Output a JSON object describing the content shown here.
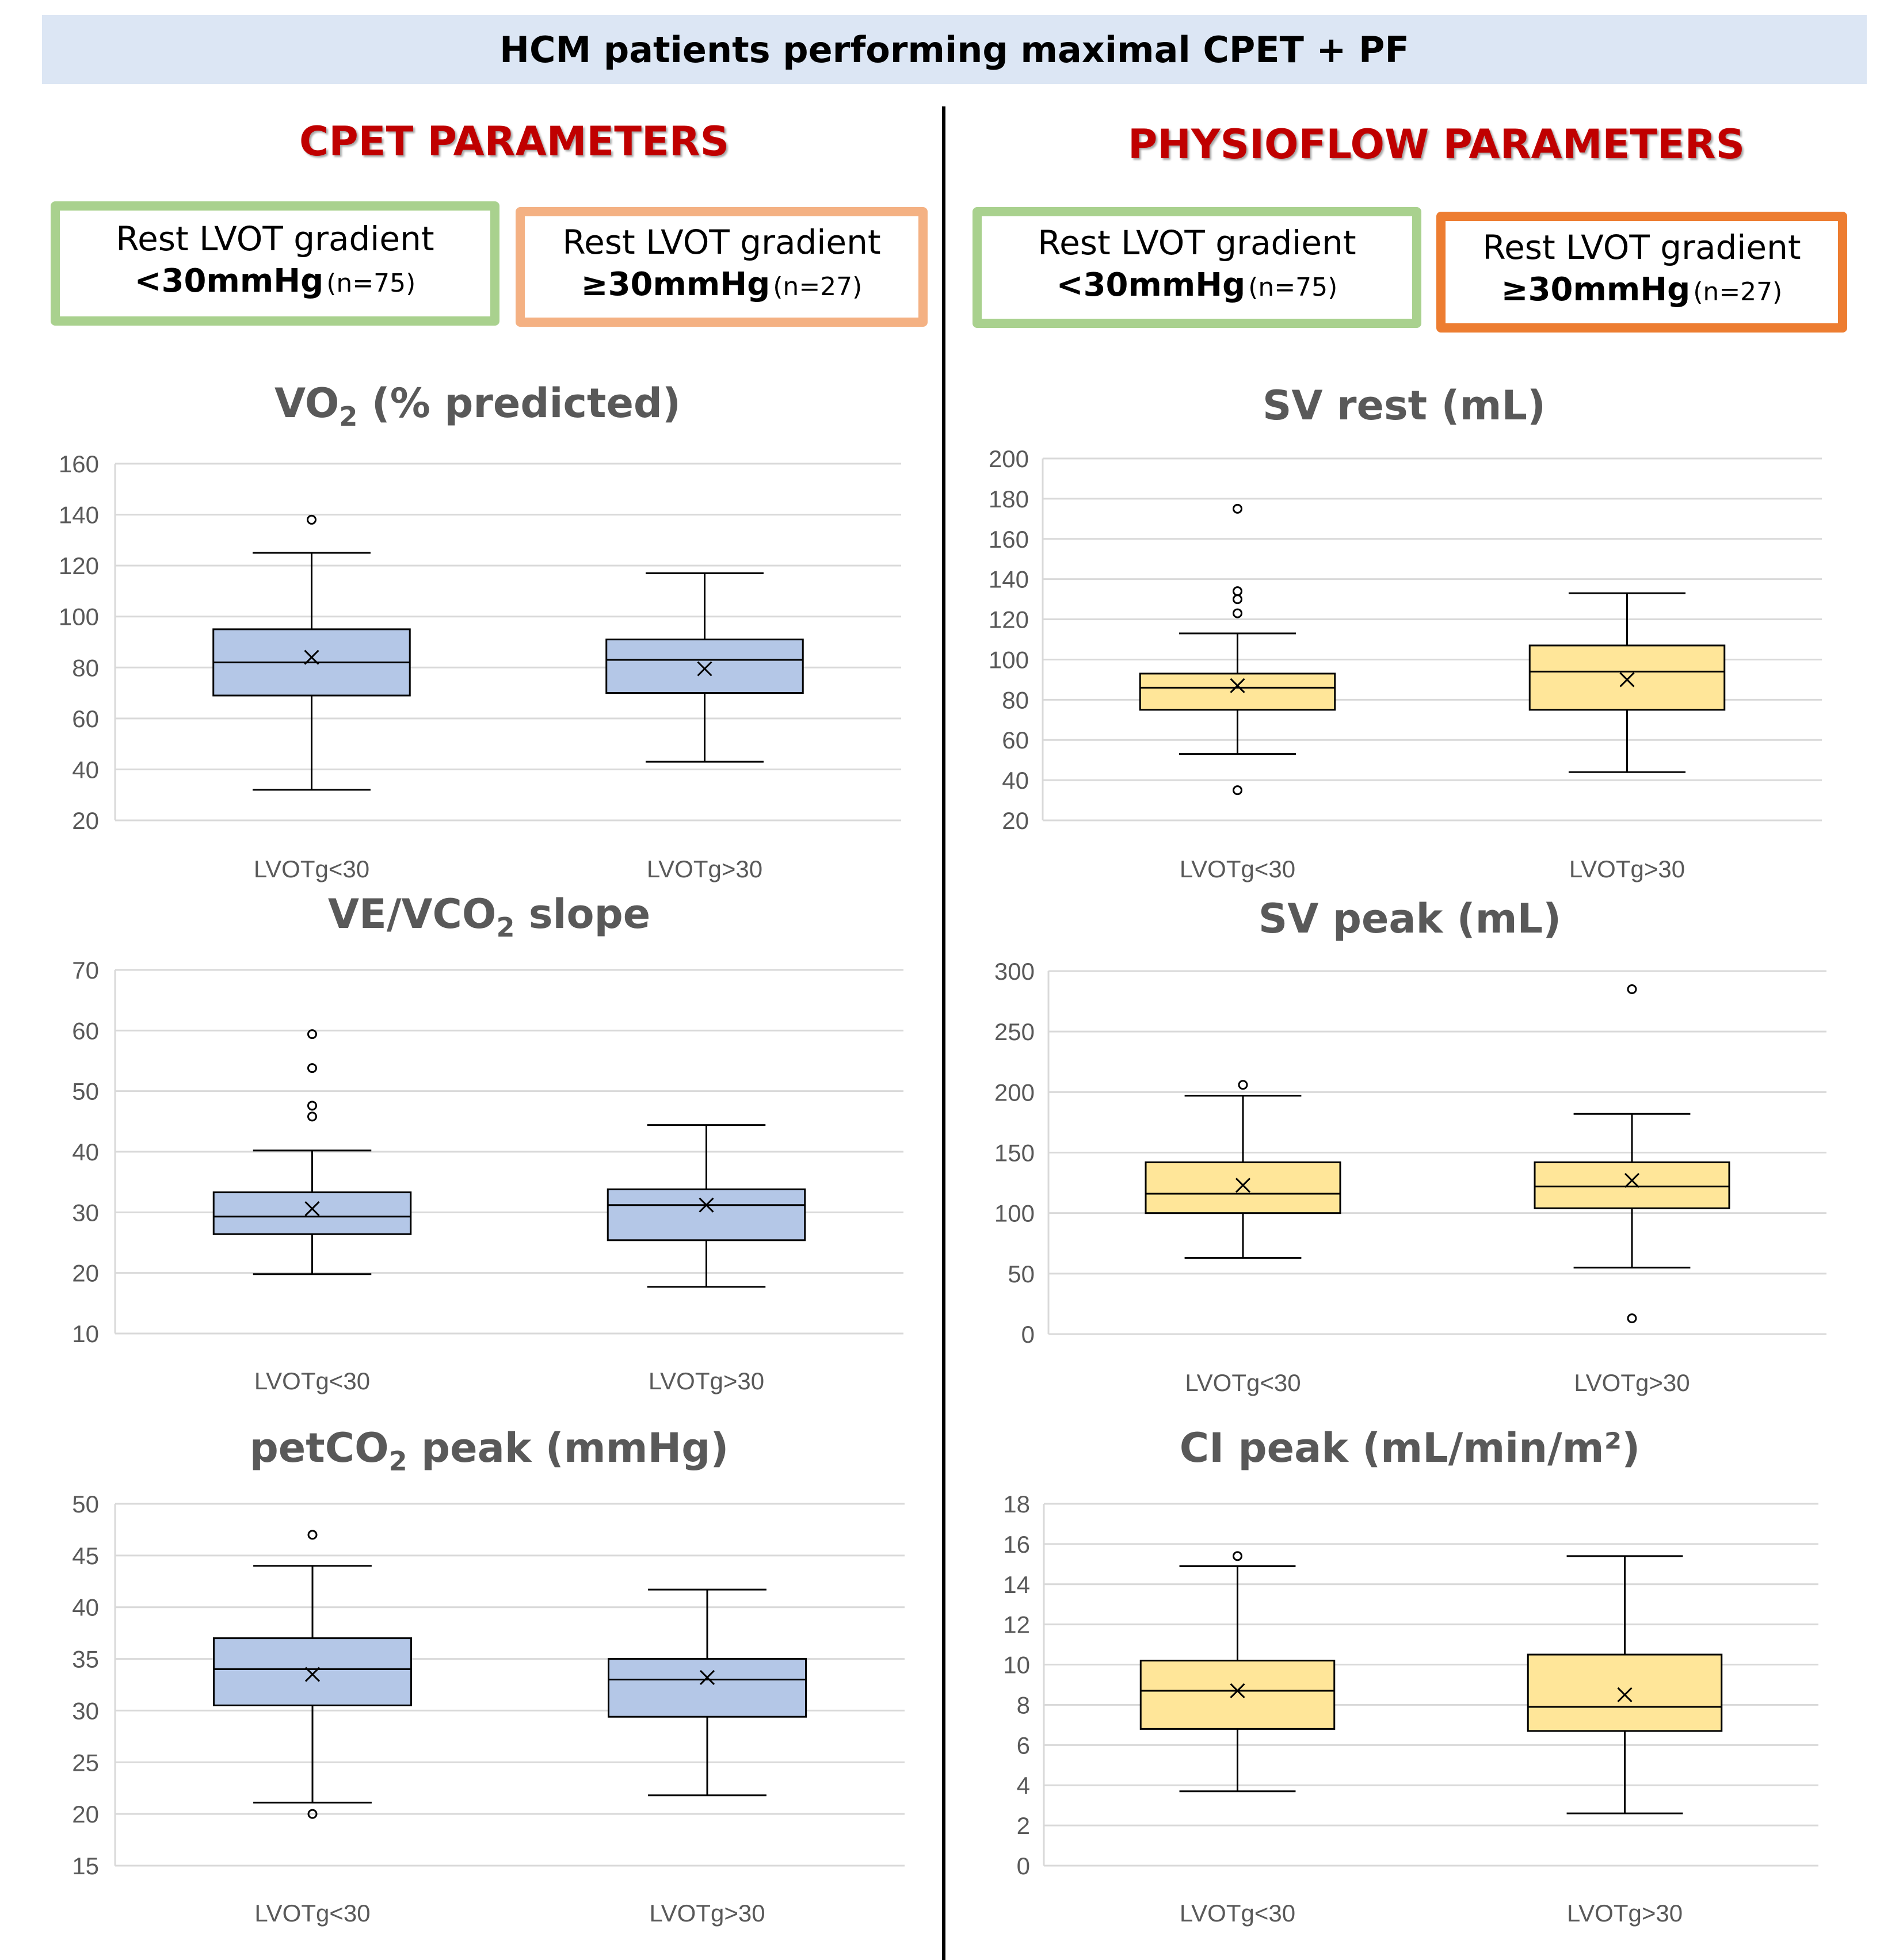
{
  "banner": {
    "title": "HCM patients performing maximal CPET + PF"
  },
  "sections": [
    {
      "title": "CPET PARAMETERS"
    },
    {
      "title": "PHYSIOFLOW  PARAMETERS"
    }
  ],
  "group_boxes": [
    {
      "line1": "Rest LVOT gradient",
      "value": "<30mmHg",
      "n": "(n=75)",
      "border_color": "#a9d18e"
    },
    {
      "line1": "Rest LVOT gradient",
      "value": "≥30mmHg",
      "n": "(n=27)",
      "border_color": "#f4b183"
    },
    {
      "line1": "Rest LVOT gradient",
      "value": "<30mmHg",
      "n": "(n=75)",
      "border_color": "#a9d18e"
    },
    {
      "line1": "Rest LVOT gradient",
      "value": "≥30mmHg",
      "n": "(n=27)",
      "border_color": "#ed7d31"
    }
  ],
  "colors": {
    "cpet_box_fill": "#b4c7e7",
    "pf_box_fill": "#ffe699",
    "grid": "#d9d9d9",
    "axis_text": "#595959",
    "title_text": "#595959",
    "section_title": "#c00000"
  },
  "chart_data": [
    {
      "type": "box",
      "title": "VO",
      "title_sub": "2",
      "title_rest": " (% predicted)",
      "ylim": [
        20,
        160
      ],
      "yticks": [
        "20",
        "40",
        "60",
        "80",
        "100",
        "120",
        "140",
        "160"
      ],
      "categories": [
        "LVOTg<30",
        "LVOTg>30"
      ],
      "boxes": [
        {
          "min": 32,
          "q1": 69,
          "median": 82,
          "q3": 95,
          "max": 125,
          "mean": 84,
          "outliers": [
            138
          ]
        },
        {
          "min": 43,
          "q1": 70,
          "median": 83,
          "q3": 91,
          "max": 117,
          "mean": 79.5,
          "outliers": []
        }
      ]
    },
    {
      "type": "box",
      "title": "VE/VCO",
      "title_sub": "2",
      "title_rest": " slope",
      "ylim": [
        10,
        70
      ],
      "yticks": [
        "10",
        "20",
        "30",
        "40",
        "50",
        "60",
        "70"
      ],
      "categories": [
        "LVOTg<30",
        "LVOTg>30"
      ],
      "boxes": [
        {
          "min": 19.8,
          "q1": 26.4,
          "median": 29.3,
          "q3": 33.3,
          "max": 40.2,
          "mean": 30.6,
          "outliers": [
            45.8,
            47.6,
            53.8,
            59.4
          ]
        },
        {
          "min": 17.7,
          "q1": 25.4,
          "median": 31.2,
          "q3": 33.8,
          "max": 44.4,
          "mean": 31.2,
          "outliers": []
        }
      ]
    },
    {
      "type": "box",
      "title": "petCO",
      "title_sub": "2",
      "title_rest": " peak (mmHg)",
      "ylim": [
        15,
        50
      ],
      "yticks": [
        "15",
        "20",
        "25",
        "30",
        "35",
        "40",
        "45",
        "50"
      ],
      "categories": [
        "LVOTg<30",
        "LVOTg>30"
      ],
      "boxes": [
        {
          "min": 21.1,
          "q1": 30.5,
          "median": 34,
          "q3": 37,
          "max": 44,
          "mean": 33.5,
          "outliers": [
            20,
            47
          ]
        },
        {
          "min": 21.8,
          "q1": 29.4,
          "median": 33,
          "q3": 35,
          "max": 41.7,
          "mean": 33.2,
          "outliers": []
        }
      ]
    },
    {
      "type": "box",
      "title": "SV rest (mL)",
      "title_sub": "",
      "title_rest": "",
      "ylim": [
        20,
        200
      ],
      "yticks": [
        "20",
        "40",
        "60",
        "80",
        "100",
        "120",
        "140",
        "160",
        "180",
        "200"
      ],
      "categories": [
        "LVOTg<30",
        "LVOTg>30"
      ],
      "boxes": [
        {
          "min": 53,
          "q1": 75,
          "median": 86,
          "q3": 93,
          "max": 113,
          "mean": 87,
          "outliers": [
            35,
            123,
            130,
            134,
            175
          ]
        },
        {
          "min": 44,
          "q1": 75,
          "median": 94,
          "q3": 107,
          "max": 133,
          "mean": 90,
          "outliers": []
        }
      ]
    },
    {
      "type": "box",
      "title": "SV peak (mL)",
      "title_sub": "",
      "title_rest": "",
      "ylim": [
        0,
        300
      ],
      "yticks": [
        "0",
        "50",
        "100",
        "150",
        "200",
        "250",
        "300"
      ],
      "categories": [
        "LVOTg<30",
        "LVOTg>30"
      ],
      "boxes": [
        {
          "min": 63,
          "q1": 100,
          "median": 116,
          "q3": 142,
          "max": 197,
          "mean": 123,
          "outliers": [
            206
          ]
        },
        {
          "min": 55,
          "q1": 104,
          "median": 122,
          "q3": 142,
          "max": 182,
          "mean": 127,
          "outliers": [
            13,
            285
          ]
        }
      ]
    },
    {
      "type": "box",
      "title": "CI peak (mL/min/m²)",
      "title_sub": "",
      "title_rest": "",
      "ylim": [
        0,
        18
      ],
      "yticks": [
        "0",
        "2",
        "4",
        "6",
        "8",
        "10",
        "12",
        "14",
        "16",
        "18"
      ],
      "categories": [
        "LVOTg<30",
        "LVOTg>30"
      ],
      "boxes": [
        {
          "min": 3.7,
          "q1": 6.8,
          "median": 8.7,
          "q3": 10.2,
          "max": 14.9,
          "mean": 8.7,
          "outliers": [
            15.4
          ]
        },
        {
          "min": 2.6,
          "q1": 6.7,
          "median": 7.9,
          "q3": 10.5,
          "max": 15.4,
          "mean": 8.5,
          "outliers": []
        }
      ]
    }
  ]
}
